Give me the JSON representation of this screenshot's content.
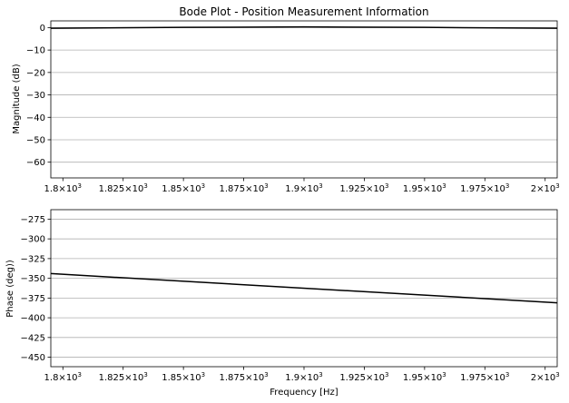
{
  "chart_data": [
    {
      "type": "line",
      "title": "Bode Plot - Position Measurement Information",
      "xlabel": "",
      "ylabel": "Magnitude (dB)",
      "xlim": [
        1795,
        2005
      ],
      "ylim": [
        -67,
        3
      ],
      "x_tick_labels": [
        {
          "base": "1.8",
          "value": 1800
        },
        {
          "base": "1.825",
          "value": 1825
        },
        {
          "base": "1.85",
          "value": 1850
        },
        {
          "base": "1.875",
          "value": 1875
        },
        {
          "base": "1.9",
          "value": 1900
        },
        {
          "base": "1.925",
          "value": 1925
        },
        {
          "base": "1.95",
          "value": 1950
        },
        {
          "base": "1.975",
          "value": 1975
        },
        {
          "base": "2",
          "value": 2000
        }
      ],
      "x_tick_suffix": "×10",
      "x_tick_exponent": "3",
      "y_ticks": [
        0,
        -10,
        -20,
        -30,
        -40,
        -50,
        -60
      ],
      "y_tick_labels": [
        "0",
        "−10",
        "−20",
        "−30",
        "−40",
        "−50",
        "−60"
      ],
      "grid": "horizontal",
      "series": [
        {
          "color": "#000000",
          "x": [
            1795,
            1850,
            1900,
            1950,
            2005
          ],
          "y": [
            -0.3,
            0.1,
            0.3,
            0.1,
            -0.3
          ]
        }
      ]
    },
    {
      "type": "line",
      "title": "",
      "xlabel": "Frequency [Hz]",
      "ylabel": "Phase (deg))",
      "xlim": [
        1795,
        2005
      ],
      "ylim": [
        -462,
        -263
      ],
      "x_tick_labels": [
        {
          "base": "1.8",
          "value": 1800
        },
        {
          "base": "1.825",
          "value": 1825
        },
        {
          "base": "1.85",
          "value": 1850
        },
        {
          "base": "1.875",
          "value": 1875
        },
        {
          "base": "1.9",
          "value": 1900
        },
        {
          "base": "1.925",
          "value": 1925
        },
        {
          "base": "1.95",
          "value": 1950
        },
        {
          "base": "1.975",
          "value": 1975
        },
        {
          "base": "2",
          "value": 2000
        }
      ],
      "x_tick_suffix": "×10",
      "x_tick_exponent": "3",
      "y_ticks": [
        -275,
        -300,
        -325,
        -350,
        -375,
        -400,
        -425,
        -450
      ],
      "y_tick_labels": [
        "−275",
        "−300",
        "−325",
        "−350",
        "−375",
        "−400",
        "−425",
        "−450"
      ],
      "grid": "horizontal",
      "series": [
        {
          "color": "#000000",
          "x": [
            1795,
            2005
          ],
          "y": [
            -344,
            -381
          ]
        }
      ]
    }
  ]
}
